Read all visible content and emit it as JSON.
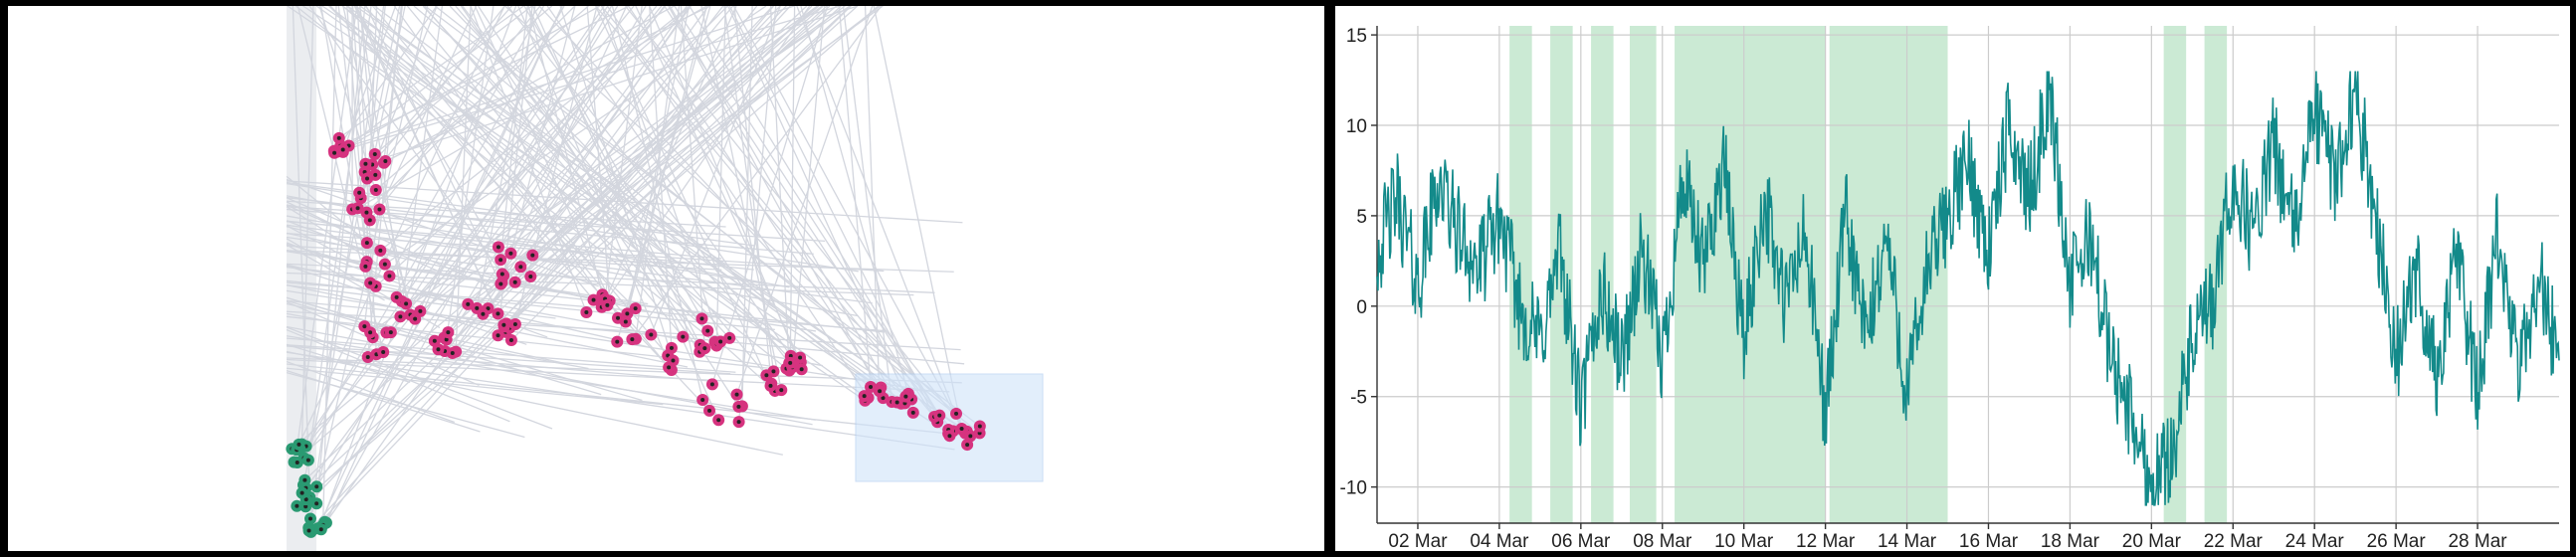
{
  "colors": {
    "line_bundle": "#d3d6de",
    "magenta_dots": "#d6337f",
    "green_dots": "#2a9a72",
    "dot_center": "#222222",
    "selection_box": "#cfe3fa",
    "shade": "#b9e3c6",
    "series_line": "#138a8a",
    "grid": "#cccccc"
  },
  "icons": [
    "lasso-selection-box",
    "scatter-dot"
  ],
  "chart_data": [
    {
      "type": "scatter",
      "description_role": "parallel-line bundle with projected scatter points",
      "title": "",
      "xlabel": "",
      "ylabel": "",
      "axes_visible": false,
      "series": [
        {
          "color": "magenta",
          "approx_point_count": 170
        },
        {
          "color": "green",
          "approx_point_count": 30
        }
      ],
      "selection": {
        "shape": "rectangle",
        "state": "active"
      }
    },
    {
      "type": "line",
      "title": "",
      "xlabel": "",
      "ylabel": "",
      "x_range": [
        "2024-03-01T00:00",
        "2024-03-29T00:00"
      ],
      "ylim": [
        -12,
        15.5
      ],
      "yticks": [
        15,
        10,
        5,
        0,
        -5,
        -10
      ],
      "ytick_labels": [
        "15",
        "10",
        "5",
        "0",
        "-5",
        "-10"
      ],
      "xtick_labels": [
        "02 Mar",
        "04 Mar",
        "06 Mar",
        "08 Mar",
        "10 Mar",
        "12 Mar",
        "14 Mar",
        "16 Mar",
        "18 Mar",
        "20 Mar",
        "22 Mar",
        "24 Mar",
        "26 Mar",
        "28 Mar"
      ],
      "grid": true,
      "shaded_ranges_days": [
        [
          3.25,
          3.8
        ],
        [
          4.25,
          4.8
        ],
        [
          5.25,
          5.8
        ],
        [
          6.2,
          6.85
        ],
        [
          7.3,
          11.0
        ],
        [
          11.1,
          14.0
        ],
        [
          19.3,
          19.85
        ],
        [
          20.3,
          20.85
        ]
      ],
      "series": [
        {
          "values": [
            {
              "day": 0.0,
              "value": 3
            },
            {
              "day": 0.5,
              "value": 6
            },
            {
              "day": 1.0,
              "value": 1
            },
            {
              "day": 1.5,
              "value": 7
            },
            {
              "day": 2.0,
              "value": 4
            },
            {
              "day": 2.5,
              "value": 2
            },
            {
              "day": 3.0,
              "value": 5
            },
            {
              "day": 3.5,
              "value": 0
            },
            {
              "day": 4.0,
              "value": -2
            },
            {
              "day": 4.5,
              "value": 3
            },
            {
              "day": 5.0,
              "value": -6
            },
            {
              "day": 5.5,
              "value": 1
            },
            {
              "day": 6.0,
              "value": -3
            },
            {
              "day": 6.5,
              "value": 3
            },
            {
              "day": 7.0,
              "value": -3
            },
            {
              "day": 7.5,
              "value": 7
            },
            {
              "day": 8.0,
              "value": 2
            },
            {
              "day": 8.5,
              "value": 8
            },
            {
              "day": 9.0,
              "value": -2
            },
            {
              "day": 9.5,
              "value": 6
            },
            {
              "day": 10.0,
              "value": 0
            },
            {
              "day": 10.5,
              "value": 4
            },
            {
              "day": 11.0,
              "value": -6
            },
            {
              "day": 11.5,
              "value": 5
            },
            {
              "day": 12.0,
              "value": -2
            },
            {
              "day": 12.5,
              "value": 4
            },
            {
              "day": 13.0,
              "value": -5
            },
            {
              "day": 13.5,
              "value": 2
            },
            {
              "day": 14.0,
              "value": 5
            },
            {
              "day": 14.5,
              "value": 8
            },
            {
              "day": 15.0,
              "value": 3
            },
            {
              "day": 15.5,
              "value": 10
            },
            {
              "day": 16.0,
              "value": 6
            },
            {
              "day": 16.5,
              "value": 12
            },
            {
              "day": 17.0,
              "value": 1
            },
            {
              "day": 17.5,
              "value": 4
            },
            {
              "day": 18.0,
              "value": -3
            },
            {
              "day": 18.5,
              "value": -6
            },
            {
              "day": 19.0,
              "value": -10
            },
            {
              "day": 19.5,
              "value": -8
            },
            {
              "day": 20.0,
              "value": -2
            },
            {
              "day": 20.5,
              "value": 0
            },
            {
              "day": 21.0,
              "value": 7
            },
            {
              "day": 21.5,
              "value": 4
            },
            {
              "day": 22.0,
              "value": 9
            },
            {
              "day": 22.5,
              "value": 4
            },
            {
              "day": 23.0,
              "value": 11
            },
            {
              "day": 23.5,
              "value": 7
            },
            {
              "day": 24.0,
              "value": 12
            },
            {
              "day": 24.5,
              "value": 5
            },
            {
              "day": 25.0,
              "value": -3
            },
            {
              "day": 25.5,
              "value": 2
            },
            {
              "day": 26.0,
              "value": -4
            },
            {
              "day": 26.5,
              "value": 3
            },
            {
              "day": 27.0,
              "value": -5
            },
            {
              "day": 27.5,
              "value": 4
            },
            {
              "day": 28.0,
              "value": -4
            },
            {
              "day": 28.5,
              "value": 2
            },
            {
              "day": 29.0,
              "value": -3
            }
          ]
        }
      ]
    }
  ]
}
